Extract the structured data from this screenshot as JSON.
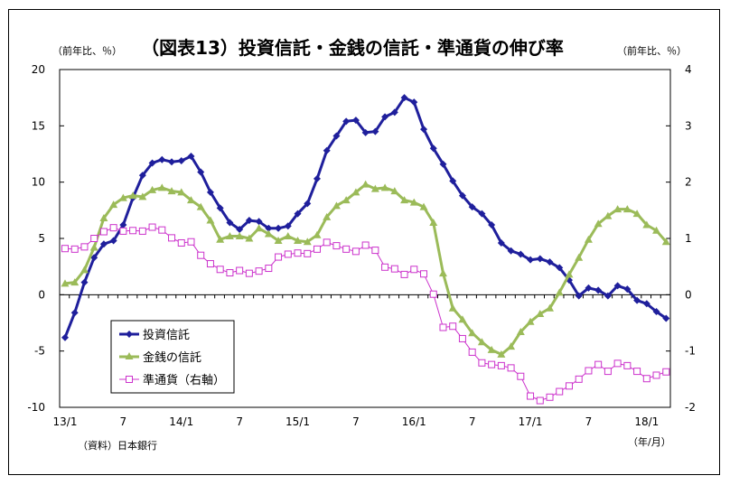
{
  "chart_data": {
    "type": "line",
    "title": "（図表13）投資信託・金銭の信託・準通貨の伸び率",
    "ylabel_left": "（前年比、％）",
    "ylabel_right": "（前年比、％）",
    "source": "（資料）日本銀行",
    "x_unit": "（年/月）",
    "ylim_left": [
      -10,
      20
    ],
    "ylim_right": [
      -2,
      4
    ],
    "yticks_left": [
      "20",
      "15",
      "10",
      "5",
      "0",
      "-5",
      "-10"
    ],
    "yticks_right": [
      "4",
      "3",
      "2",
      "1",
      "0",
      "-1",
      "-2"
    ],
    "x_tick_labels": [
      "13/1",
      "7",
      "14/1",
      "7",
      "15/1",
      "7",
      "16/1",
      "7",
      "17/1",
      "7",
      "18/1"
    ],
    "grid": false,
    "legend_position": "bottom-left",
    "series": [
      {
        "name": "投資信託",
        "axis": "left",
        "color": "#1f1f9c",
        "marker": "diamond",
        "values": [
          -3.8,
          -1.6,
          1.1,
          3.3,
          4.5,
          4.8,
          6.2,
          8.6,
          10.6,
          11.7,
          12.0,
          11.8,
          11.9,
          12.3,
          10.9,
          9.1,
          7.7,
          6.4,
          5.8,
          6.6,
          6.5,
          5.9,
          5.9,
          6.1,
          7.2,
          8.1,
          10.3,
          12.8,
          14.1,
          15.4,
          15.5,
          14.4,
          14.5,
          15.8,
          16.2,
          17.5,
          17.1,
          14.7,
          13.0,
          11.6,
          10.1,
          8.8,
          7.8,
          7.2,
          6.2,
          4.6,
          3.9,
          3.6,
          3.1,
          3.2,
          2.9,
          2.4,
          1.3,
          -0.1,
          0.6,
          0.4,
          -0.1,
          0.8,
          0.5,
          -0.5,
          -0.8,
          -1.5,
          -2.1
        ]
      },
      {
        "name": "金銭の信託",
        "axis": "left",
        "color": "#9bbb59",
        "marker": "triangle",
        "values": [
          1.0,
          1.1,
          2.2,
          4.2,
          6.8,
          8.0,
          8.6,
          8.8,
          8.7,
          9.3,
          9.5,
          9.2,
          9.1,
          8.4,
          7.8,
          6.6,
          4.9,
          5.2,
          5.2,
          5.0,
          5.9,
          5.4,
          4.8,
          5.2,
          4.8,
          4.7,
          5.3,
          6.9,
          7.9,
          8.4,
          9.1,
          9.8,
          9.4,
          9.5,
          9.2,
          8.4,
          8.2,
          7.8,
          6.4,
          1.9,
          -1.2,
          -2.2,
          -3.4,
          -4.2,
          -4.9,
          -5.3,
          -4.6,
          -3.3,
          -2.4,
          -1.7,
          -1.2,
          0.2,
          1.8,
          3.3,
          4.9,
          6.3,
          7.0,
          7.6,
          7.6,
          7.2,
          6.2,
          5.7,
          4.7
        ]
      },
      {
        "name": "準通貨（右軸）",
        "axis": "right",
        "color": "#cc33cc",
        "marker": "square-open",
        "values": [
          0.82,
          0.81,
          0.85,
          1.0,
          1.12,
          1.19,
          1.13,
          1.14,
          1.13,
          1.2,
          1.15,
          1.01,
          0.92,
          0.94,
          0.7,
          0.55,
          0.45,
          0.39,
          0.43,
          0.38,
          0.42,
          0.47,
          0.67,
          0.72,
          0.74,
          0.73,
          0.81,
          0.93,
          0.87,
          0.81,
          0.77,
          0.88,
          0.79,
          0.49,
          0.46,
          0.36,
          0.45,
          0.37,
          0.01,
          -0.58,
          -0.56,
          -0.78,
          -1.02,
          -1.21,
          -1.24,
          -1.26,
          -1.3,
          -1.45,
          -1.8,
          -1.88,
          -1.82,
          -1.72,
          -1.62,
          -1.5,
          -1.35,
          -1.24,
          -1.36,
          -1.22,
          -1.26,
          -1.36,
          -1.49,
          -1.43,
          -1.37
        ]
      }
    ]
  }
}
